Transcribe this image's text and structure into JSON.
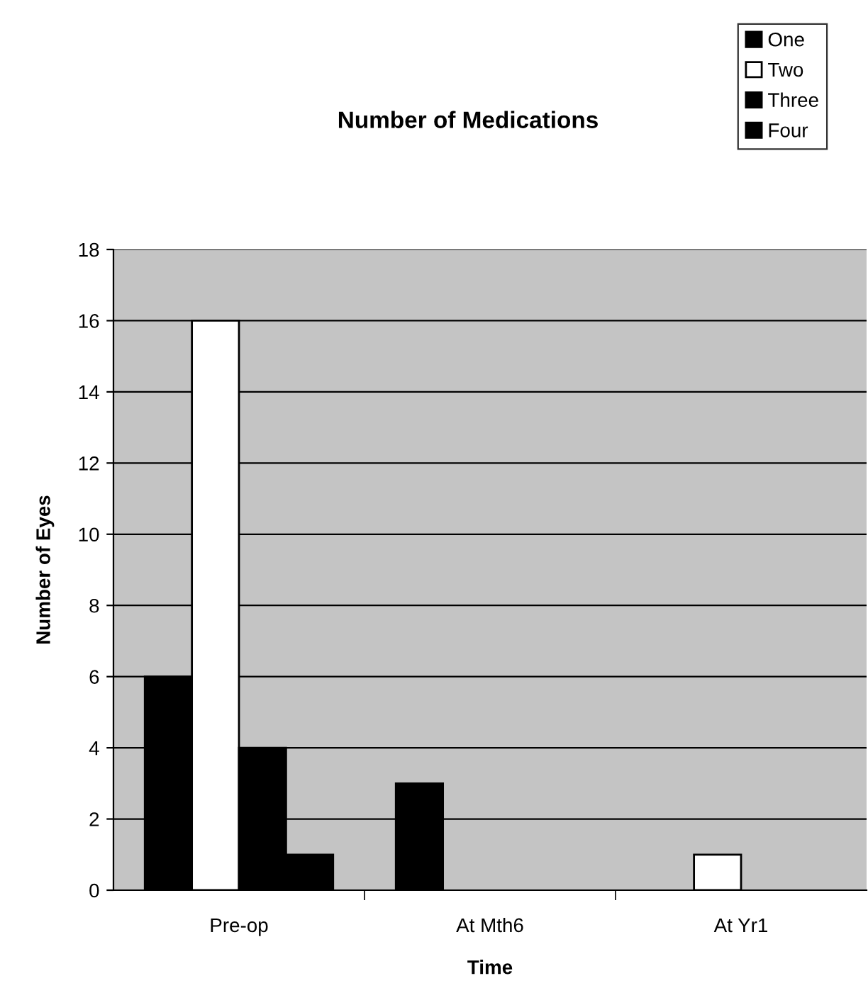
{
  "chart_data": {
    "type": "bar",
    "title": "Number of Medications",
    "xlabel": "Time",
    "ylabel": "Number of Eyes",
    "categories": [
      "Pre-op",
      "At Mth6",
      "At Yr1"
    ],
    "series": [
      {
        "name": "One",
        "color": "#000000",
        "values": [
          6,
          3,
          null
        ]
      },
      {
        "name": "Two",
        "color": "#ffffff",
        "values": [
          16,
          null,
          1
        ]
      },
      {
        "name": "Three",
        "color": "#000000",
        "values": [
          4,
          null,
          null
        ]
      },
      {
        "name": "Four",
        "color": "#000000",
        "values": [
          1,
          null,
          null
        ]
      }
    ],
    "ylim": [
      0,
      18
    ],
    "yticks": [
      0,
      2,
      4,
      6,
      8,
      10,
      12,
      14,
      16,
      18
    ],
    "grid": "y",
    "legend": "top right"
  }
}
